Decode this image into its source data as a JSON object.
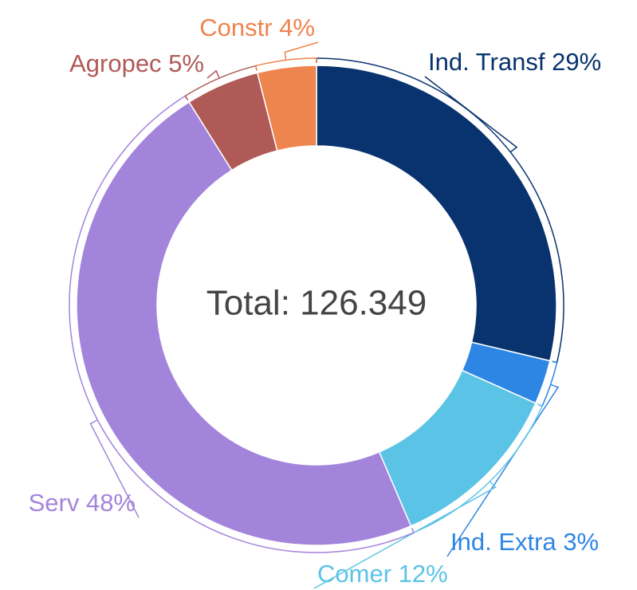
{
  "chart_data": {
    "type": "donut",
    "center_text": "Total: 126.349",
    "categories": [
      "Ind. Transf",
      "Ind. Extra",
      "Comer",
      "Serv",
      "Agropec",
      "Constr"
    ],
    "values": [
      29,
      3,
      12,
      48,
      5,
      4
    ],
    "value_labels": [
      "29%",
      "3%",
      "12%",
      "48%",
      "5%",
      "4%"
    ],
    "colors": [
      "#08336e",
      "#2e86e4",
      "#5bc4e6",
      "#a384db",
      "#b05a58",
      "#ee844e"
    ]
  }
}
